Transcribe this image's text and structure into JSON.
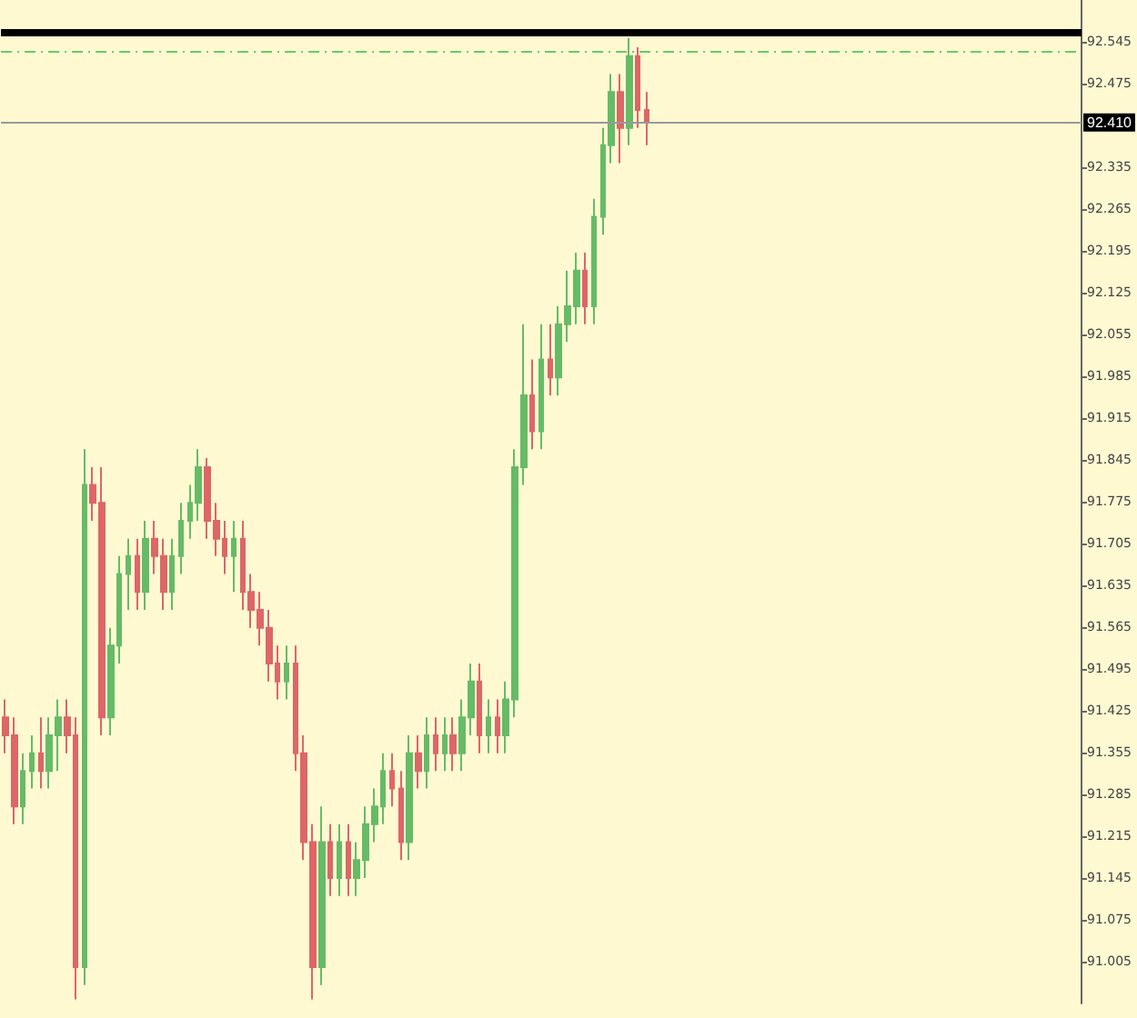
{
  "chart_data": {
    "type": "candlestick",
    "categories": [
      null,
      null,
      null,
      null,
      null,
      null,
      null,
      null,
      null,
      null,
      null,
      null,
      null,
      null,
      null,
      null,
      null,
      null,
      null,
      null,
      null,
      null,
      null,
      null,
      null,
      null,
      null,
      null,
      null,
      null,
      null,
      null,
      null,
      null,
      null,
      null,
      null,
      null,
      null,
      null,
      null,
      null,
      null,
      null,
      null,
      null,
      null,
      null,
      null,
      null,
      null,
      null,
      null,
      null,
      null,
      null,
      null,
      null,
      null,
      null,
      null,
      null,
      null,
      null,
      null,
      null,
      null,
      null,
      null,
      null,
      null,
      null,
      null,
      null,
      null,
      null,
      null,
      null,
      null,
      null,
      null,
      null,
      null,
      null,
      null,
      null,
      null,
      null,
      null,
      null,
      null,
      null,
      null,
      null,
      null,
      null,
      null,
      null,
      null,
      null,
      null,
      null,
      null,
      null,
      null,
      null,
      null,
      null,
      null,
      null,
      null,
      null,
      null,
      null,
      null,
      null,
      null,
      null,
      null,
      null,
      null,
      null,
      null
    ],
    "ohlc": [
      [
        91.414,
        91.444,
        91.354,
        91.384
      ],
      [
        91.384,
        91.414,
        91.235,
        91.265
      ],
      [
        91.265,
        91.354,
        91.235,
        91.324
      ],
      [
        91.324,
        91.384,
        91.295,
        91.354
      ],
      [
        91.354,
        91.414,
        91.295,
        91.324
      ],
      [
        91.324,
        91.414,
        91.295,
        91.384
      ],
      [
        91.384,
        91.444,
        91.324,
        91.414
      ],
      [
        91.414,
        91.444,
        91.354,
        91.384
      ],
      [
        91.384,
        91.414,
        90.942,
        90.996
      ],
      [
        90.996,
        91.863,
        90.966,
        91.803
      ],
      [
        91.803,
        91.833,
        91.743,
        91.773
      ],
      [
        91.773,
        91.833,
        91.384,
        91.414
      ],
      [
        91.414,
        91.564,
        91.384,
        91.534
      ],
      [
        91.534,
        91.684,
        91.504,
        91.654
      ],
      [
        91.654,
        91.713,
        91.594,
        91.684
      ],
      [
        91.684,
        91.713,
        91.594,
        91.624
      ],
      [
        91.624,
        91.743,
        91.594,
        91.713
      ],
      [
        91.713,
        91.743,
        91.654,
        91.684
      ],
      [
        91.684,
        91.713,
        91.594,
        91.624
      ],
      [
        91.624,
        91.713,
        91.594,
        91.684
      ],
      [
        91.684,
        91.773,
        91.654,
        91.743
      ],
      [
        91.743,
        91.803,
        91.713,
        91.773
      ],
      [
        91.773,
        91.863,
        91.743,
        91.833
      ],
      [
        91.833,
        91.848,
        91.713,
        91.743
      ],
      [
        91.743,
        91.773,
        91.684,
        91.713
      ],
      [
        91.713,
        91.743,
        91.654,
        91.684
      ],
      [
        91.684,
        91.743,
        91.624,
        91.713
      ],
      [
        91.713,
        91.743,
        91.594,
        91.624
      ],
      [
        91.624,
        91.654,
        91.564,
        91.594
      ],
      [
        91.594,
        91.624,
        91.534,
        91.564
      ],
      [
        91.564,
        91.594,
        91.474,
        91.504
      ],
      [
        91.504,
        91.534,
        91.444,
        91.474
      ],
      [
        91.474,
        91.534,
        91.444,
        91.504
      ],
      [
        91.504,
        91.534,
        91.324,
        91.354
      ],
      [
        91.354,
        91.384,
        91.175,
        91.205
      ],
      [
        91.205,
        91.235,
        90.942,
        90.996
      ],
      [
        90.996,
        91.265,
        90.966,
        91.205
      ],
      [
        91.205,
        91.235,
        91.115,
        91.145
      ],
      [
        91.145,
        91.235,
        91.115,
        91.205
      ],
      [
        91.205,
        91.235,
        91.115,
        91.145
      ],
      [
        91.145,
        91.205,
        91.115,
        91.175
      ],
      [
        91.175,
        91.265,
        91.145,
        91.235
      ],
      [
        91.235,
        91.295,
        91.205,
        91.265
      ],
      [
        91.265,
        91.354,
        91.235,
        91.324
      ],
      [
        91.324,
        91.354,
        91.265,
        91.295
      ],
      [
        91.295,
        91.324,
        91.175,
        91.205
      ],
      [
        91.205,
        91.384,
        91.175,
        91.354
      ],
      [
        91.354,
        91.384,
        91.295,
        91.324
      ],
      [
        91.324,
        91.414,
        91.295,
        91.384
      ],
      [
        91.384,
        91.414,
        91.324,
        91.354
      ],
      [
        91.354,
        91.414,
        91.324,
        91.384
      ],
      [
        91.384,
        91.414,
        91.324,
        91.354
      ],
      [
        91.354,
        91.444,
        91.324,
        91.414
      ],
      [
        91.414,
        91.504,
        91.384,
        91.474
      ],
      [
        91.474,
        91.504,
        91.354,
        91.384
      ],
      [
        91.384,
        91.444,
        91.354,
        91.414
      ],
      [
        91.414,
        91.444,
        91.354,
        91.384
      ],
      [
        91.384,
        91.474,
        91.354,
        91.444
      ],
      [
        91.444,
        91.863,
        91.414,
        91.833
      ],
      [
        91.833,
        92.072,
        91.803,
        91.953
      ],
      [
        91.953,
        92.013,
        91.863,
        91.893
      ],
      [
        91.893,
        92.072,
        91.863,
        92.013
      ],
      [
        92.013,
        92.072,
        91.953,
        91.983
      ],
      [
        91.983,
        92.102,
        91.953,
        92.072
      ],
      [
        92.072,
        92.162,
        92.043,
        92.102
      ],
      [
        92.102,
        92.192,
        92.072,
        92.162
      ],
      [
        92.162,
        92.192,
        92.072,
        92.102
      ],
      [
        92.102,
        92.282,
        92.072,
        92.252
      ],
      [
        92.252,
        92.401,
        92.222,
        92.372
      ],
      [
        92.372,
        92.491,
        92.342,
        92.461
      ],
      [
        92.461,
        92.491,
        92.342,
        92.401
      ],
      [
        92.401,
        92.551,
        92.372,
        92.521
      ],
      [
        92.521,
        92.536,
        92.401,
        92.431
      ],
      [
        92.431,
        92.461,
        92.372,
        92.41
      ],
      null,
      null,
      null,
      null,
      null,
      null,
      null,
      null,
      null,
      null,
      null,
      null,
      null,
      null,
      null,
      null,
      null,
      null,
      null,
      null,
      null,
      null,
      null,
      null,
      null,
      null,
      null,
      null,
      null,
      null,
      null,
      null,
      null,
      null,
      null,
      null,
      null,
      null,
      null,
      null,
      null,
      null,
      null,
      null,
      null,
      null,
      null,
      null,
      null
    ],
    "colors": [
      "#dd6666",
      "#dd6666",
      "#66bb66",
      "#66bb66",
      "#dd6666",
      "#66bb66",
      "#66bb66",
      "#dd6666",
      "#dd6666",
      "#66bb66",
      "#dd6666",
      "#dd6666",
      "#66bb66",
      "#66bb66",
      "#66bb66",
      "#dd6666",
      "#66bb66",
      "#dd6666",
      "#dd6666",
      "#66bb66",
      "#66bb66",
      "#66bb66",
      "#66bb66",
      "#dd6666",
      "#dd6666",
      "#dd6666",
      "#66bb66",
      "#dd6666",
      "#dd6666",
      "#dd6666",
      "#dd6666",
      "#dd6666",
      "#66bb66",
      "#dd6666",
      "#dd6666",
      "#dd6666",
      "#66bb66",
      "#dd6666",
      "#66bb66",
      "#dd6666",
      "#66bb66",
      "#66bb66",
      "#66bb66",
      "#66bb66",
      "#dd6666",
      "#dd6666",
      "#66bb66",
      "#dd6666",
      "#66bb66",
      "#dd6666",
      "#66bb66",
      "#dd6666",
      "#66bb66",
      "#66bb66",
      "#dd6666",
      "#66bb66",
      "#dd6666",
      "#66bb66",
      "#66bb66",
      "#66bb66",
      "#dd6666",
      "#66bb66",
      "#dd6666",
      "#66bb66",
      "#66bb66",
      "#66bb66",
      "#dd6666",
      "#66bb66",
      "#66bb66",
      "#66bb66",
      "#dd6666",
      "#66bb66",
      "#dd6666",
      "#dd6666",
      null,
      null,
      null,
      null,
      null,
      null,
      null,
      null,
      null,
      null,
      null,
      null,
      null,
      null,
      null,
      null,
      null,
      null,
      null,
      null,
      null,
      null,
      null,
      null,
      null,
      null,
      null,
      null,
      null,
      null,
      null,
      null,
      null,
      null,
      null,
      null,
      null,
      null,
      null,
      null,
      null,
      null,
      null,
      null,
      null,
      null,
      null,
      null,
      null
    ],
    "ylim": [
      90.935,
      92.615
    ],
    "yticks": [
      91.005,
      91.075,
      91.145,
      91.215,
      91.285,
      91.355,
      91.425,
      91.495,
      91.565,
      91.635,
      91.705,
      91.775,
      91.845,
      91.915,
      91.985,
      92.055,
      92.125,
      92.195,
      92.265,
      92.335,
      92.475,
      92.545
    ],
    "grid": false,
    "ref_lines": [
      {
        "axis": "y",
        "value": 92.563,
        "label": null,
        "color": "#000000",
        "line_style": "solid"
      },
      {
        "axis": "y",
        "value": 92.527,
        "label": null,
        "color": "#66cc66",
        "line_style": "dashed"
      },
      {
        "axis": "y",
        "value": 92.41,
        "label": "92.410",
        "color": "#999999",
        "line_style": "solid"
      }
    ]
  }
}
